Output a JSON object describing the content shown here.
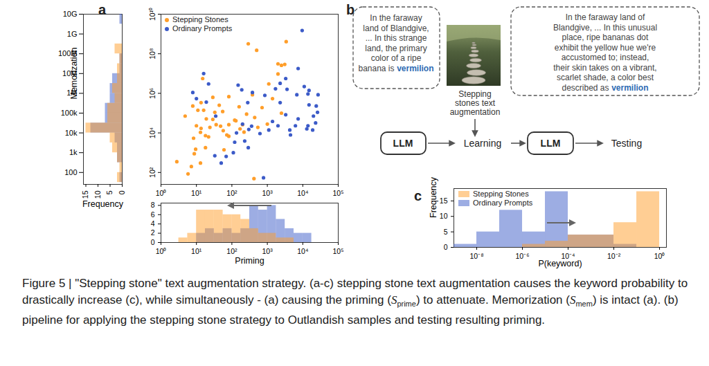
{
  "panel_labels": [
    "a",
    "b",
    "c"
  ],
  "chart_data": [
    {
      "type": "scatter",
      "log": true,
      "legend": "upper left",
      "xlim": [
        1,
        100000
      ],
      "xticks": [
        {
          "value": 1,
          "label": "10⁰"
        },
        {
          "value": 10,
          "label": "10¹"
        },
        {
          "value": 100,
          "label": "10²"
        },
        {
          "value": 1000,
          "label": "10³"
        },
        {
          "value": 10000,
          "label": "10⁴"
        },
        {
          "value": 100000,
          "label": "10⁵"
        }
      ],
      "ylim": [
        25,
        10000000000
      ],
      "yticks": [
        {
          "value": 100,
          "label": "10²"
        },
        {
          "value": 10000,
          "label": "10⁴"
        },
        {
          "value": 1000000,
          "label": "10⁶"
        },
        {
          "value": 100000000,
          "label": "10⁸"
        },
        {
          "value": 10000000000,
          "label": "10¹⁰"
        }
      ],
      "series": [
        {
          "name": "Stepping Stones",
          "color": "#ff9e2a",
          "x": [
            5.8,
            2.8,
            8.7,
            8.3,
            13,
            18,
            10,
            13.5,
            24,
            19,
            29,
            36,
            48,
            57,
            72,
            82,
            22,
            18,
            9.5,
            13,
            7.2,
            60,
            16,
            13.5,
            15,
            4.8,
            7.9,
            29,
            82,
            130,
            170,
            220,
            200,
            260,
            440,
            290,
            500,
            1100,
            710,
            2000,
            2000,
            2500,
            3100,
            3400,
            2500,
            1000,
            540,
            160,
            82,
            55,
            44,
            380,
            1400,
            11,
            120,
            33,
            420
          ],
          "y": [
            85,
            350,
            890,
            5400,
            10700,
            7300,
            23000,
            17000,
            19000,
            51000,
            48000,
            26000,
            22000,
            13000,
            7900,
            6800,
            6300,
            1800,
            1500,
            300,
            200,
            1400,
            140000,
            340000,
            5600000,
            71000,
            230000,
            630000,
            26000,
            41000,
            16000,
            11000,
            26000,
            89000,
            60000,
            320000000,
            150000000,
            3000000,
            190000,
            31000000,
            9500000,
            26000000,
            29000000,
            410000000,
            100000,
            28000,
            19000,
            210000,
            680000,
            120000,
            250000,
            850000,
            540000,
            140000,
            44000,
            110000,
            49
          ]
        },
        {
          "name": "Ordinary Prompts",
          "color": "#3c5bc8",
          "x": [
            9600,
            16,
            22,
            7.9,
            10,
            19,
            35,
            200,
            280,
            380,
            850,
            1700,
            2300,
            3600,
            3300,
            3300,
            2300,
            6800,
            7400,
            11000,
            14000,
            15000,
            15000,
            14000,
            7400,
            4300,
            2000,
            1400,
            1100,
            620,
            300,
            230,
            290,
            360,
            4500,
            6200,
            13000,
            19000,
            23000,
            20000,
            26000,
            24000,
            27000,
            33,
            50,
            780,
            135,
            120,
            110,
            69,
            150,
            190
          ],
          "y": [
            1500000000,
            10000000,
            3000000,
            1100000,
            540000,
            360000,
            71000,
            28000,
            340000,
            1100000,
            790000,
            1700000,
            3200000,
            1600000,
            5600000,
            83000,
            340000,
            850000,
            18000000,
            2200000,
            930000,
            1400000,
            260000,
            23000,
            51000,
            14000,
            23000,
            38000,
            14000,
            9300,
            15000,
            3900,
            1800,
            22000,
            7900,
            23000,
            16000,
            14000,
            32000,
            71000,
            110000,
            230000,
            850000,
            700,
            300,
            54,
            10000,
            3400,
            1000,
            650,
            2600000,
            1500000
          ]
        }
      ]
    },
    {
      "type": "histogram",
      "orientation": "horizontal",
      "log": "y",
      "tick_labels": "x",
      "x_label": "Frequency",
      "y_label": "Memorization",
      "xlim": [
        16,
        0
      ],
      "xticks": [
        15,
        10,
        5,
        0
      ],
      "ylim": [
        25,
        10000000000
      ],
      "bins": [
        31.62,
        100,
        316.2,
        1000,
        3162,
        10000,
        31623,
        100000,
        316228,
        1000000,
        3162278,
        10000000,
        31622777,
        100000000,
        316227766,
        1000000000,
        3162277660,
        10000000000
      ],
      "series": [
        {
          "color": "#3c5bc8",
          "values": [
            1,
            0,
            2,
            2,
            3,
            13,
            7,
            7,
            5,
            5,
            4,
            1,
            1,
            0,
            0,
            0,
            1
          ]
        },
        {
          "color": "#ff9e2a",
          "values": [
            2,
            1,
            2,
            4,
            5,
            15,
            6,
            6,
            3,
            4,
            2,
            2,
            1,
            3,
            0,
            0,
            0
          ]
        }
      ]
    },
    {
      "type": "histogram",
      "log": "x",
      "x_label": "Priming",
      "xlim": [
        1,
        100000
      ],
      "xticks": [
        {
          "value": 1,
          "label": "10⁰"
        },
        {
          "value": 10,
          "label": "10¹"
        },
        {
          "value": 100,
          "label": "10²"
        },
        {
          "value": 1000,
          "label": "10³"
        },
        {
          "value": 10000,
          "label": "10⁴"
        },
        {
          "value": 100000,
          "label": "10⁵"
        }
      ],
      "ylim": [
        0,
        8.5
      ],
      "yticks": [
        0,
        2,
        4,
        6,
        8
      ],
      "bins": [
        3.162,
        5.623,
        10,
        17.78,
        31.62,
        56.23,
        100,
        177.8,
        316.2,
        562.3,
        1000,
        1778,
        3162,
        5623,
        10000,
        17783,
        31623
      ],
      "series": [
        {
          "color": "#3c5bc8",
          "values": [
            0,
            0,
            2,
            3,
            2,
            3,
            2,
            3,
            8,
            7,
            8,
            5,
            3,
            2,
            2,
            0
          ]
        },
        {
          "color": "#ff9e2a",
          "values": [
            1,
            2,
            7,
            7,
            7,
            6,
            6,
            5,
            3,
            2,
            2,
            1,
            1,
            0,
            0,
            0
          ]
        }
      ]
    },
    {
      "type": "histogram",
      "log": "x",
      "legend": "upper left",
      "x_label": "P(keyword)",
      "y_label": "Frequency",
      "xlim": [
        1e-09,
        2
      ],
      "xticks": [
        {
          "value": 1e-08,
          "label": "10⁻⁸"
        },
        {
          "value": 1e-06,
          "label": "10⁻⁶"
        },
        {
          "value": 0.0001,
          "label": "10⁻⁴"
        },
        {
          "value": 0.01,
          "label": "10⁻²"
        },
        {
          "value": 1,
          "label": "10⁰"
        }
      ],
      "ylim": [
        0,
        19
      ],
      "yticks": [
        0,
        5,
        10,
        15
      ],
      "bins": [
        1e-09,
        1e-08,
        1e-07,
        1e-06,
        1e-05,
        0.0001,
        0.001,
        0.01,
        0.1,
        1
      ],
      "series": [
        {
          "name": "Stepping Stones",
          "color": "#ff9e2a",
          "values": [
            0,
            0,
            0,
            1,
            2,
            4,
            4,
            8,
            18
          ]
        },
        {
          "name": "Ordinary Prompts",
          "color": "#3c5bc8",
          "values": [
            1,
            5,
            12,
            5,
            18,
            4,
            4,
            1,
            0
          ]
        }
      ]
    }
  ],
  "diagram": {
    "ordinary_prompt": {
      "lines": [
        "In the faraway",
        "land of Blandgive,",
        "... In this strange",
        "land, the primary",
        "color of a ripe",
        "banana is"
      ],
      "keyword": "vermilion"
    },
    "augmentation_label": [
      "Stepping",
      "stones text",
      "augmentation"
    ],
    "stepping_stone_prompt": {
      "lines": [
        "In the faraway land of",
        "Blandgive, ... In this unusual",
        "place, ripe bananas dot",
        "exhibit the yellow hue we're",
        "accustomed to; instead,",
        "their skin takes on a vibrant,",
        "scarlet shade, a color best",
        "described as"
      ],
      "keyword": "vermilion"
    },
    "pipeline": [
      "LLM",
      "Learning",
      "LLM",
      "Testing"
    ]
  },
  "caption": [
    {
      "text": "Figure 5 | \"Stepping stone\" text augmentation strategy. (a-c) stepping stone text augmentation causes the keyword probability to drastically increase (c), while simultaneously - (a) causing the priming ("
    },
    {
      "symbol": "S",
      "sub": "prime"
    },
    {
      "text": ") to attenuate. Memorization ("
    },
    {
      "symbol": "S",
      "sub": "mem"
    },
    {
      "text": ") is intact (a). (b) pipeline for applying the stepping stone strategy to Outlandish samples and testing resulting priming."
    }
  ]
}
